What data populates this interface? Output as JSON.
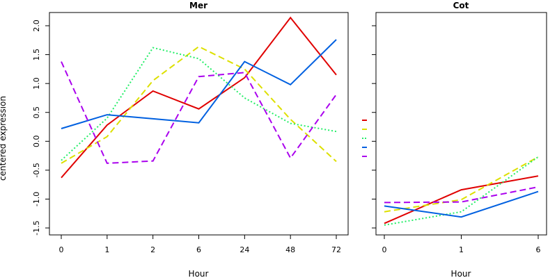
{
  "figure": {
    "ylabel": "centered expression"
  },
  "chart_data": [
    {
      "type": "line",
      "title": "Mer",
      "xlabel": "Hour",
      "ylabel": "centered expression",
      "categories": [
        "0",
        "1",
        "2",
        "6",
        "24",
        "48",
        "72"
      ],
      "ylim": [
        -1.5,
        2.2
      ],
      "yticks": [
        -1.5,
        -1.0,
        -0.5,
        0.0,
        0.5,
        1.0,
        1.5,
        2.0
      ],
      "series": [
        {
          "color": "#e00000",
          "dash": "solid",
          "values": [
            -0.63,
            0.28,
            0.87,
            0.56,
            1.1,
            2.14,
            1.15
          ]
        },
        {
          "color": "#dde000",
          "dash": "dashed",
          "values": [
            -0.38,
            0.08,
            1.05,
            1.64,
            1.25,
            0.38,
            -0.35
          ]
        },
        {
          "color": "#22ee66",
          "dash": "dotted",
          "values": [
            -0.33,
            0.4,
            1.62,
            1.43,
            0.75,
            0.31,
            0.17
          ]
        },
        {
          "color": "#0060e0",
          "dash": "solid",
          "values": [
            0.22,
            0.46,
            0.39,
            0.32,
            1.38,
            0.98,
            1.76
          ]
        },
        {
          "color": "#aa00ee",
          "dash": "dashed",
          "values": [
            1.38,
            -0.38,
            -0.34,
            1.12,
            1.19,
            -0.29,
            0.81
          ]
        }
      ]
    },
    {
      "type": "line",
      "title": "Cot",
      "xlabel": "Hour",
      "categories": [
        "0",
        "1",
        "6"
      ],
      "ylim": [
        -1.5,
        2.2
      ],
      "series": [
        {
          "color": "#e00000",
          "dash": "solid",
          "values": [
            -1.42,
            -0.84,
            -0.6
          ]
        },
        {
          "color": "#dde000",
          "dash": "dashed",
          "values": [
            -1.22,
            -1.01,
            -0.27
          ]
        },
        {
          "color": "#22ee66",
          "dash": "dotted",
          "values": [
            -1.45,
            -1.22,
            -0.27
          ]
        },
        {
          "color": "#0060e0",
          "dash": "solid",
          "values": [
            -1.12,
            -1.31,
            -0.87
          ]
        },
        {
          "color": "#aa00ee",
          "dash": "dashed",
          "values": [
            -1.06,
            -1.05,
            -0.79
          ]
        }
      ]
    }
  ],
  "legend": {
    "placement": "between-panels",
    "colors": [
      "#e00000",
      "#dde000",
      "#22ee66",
      "#0060e0",
      "#aa00ee"
    ],
    "dashes": [
      "solid",
      "dashed",
      "dotted",
      "solid",
      "dashed"
    ]
  }
}
